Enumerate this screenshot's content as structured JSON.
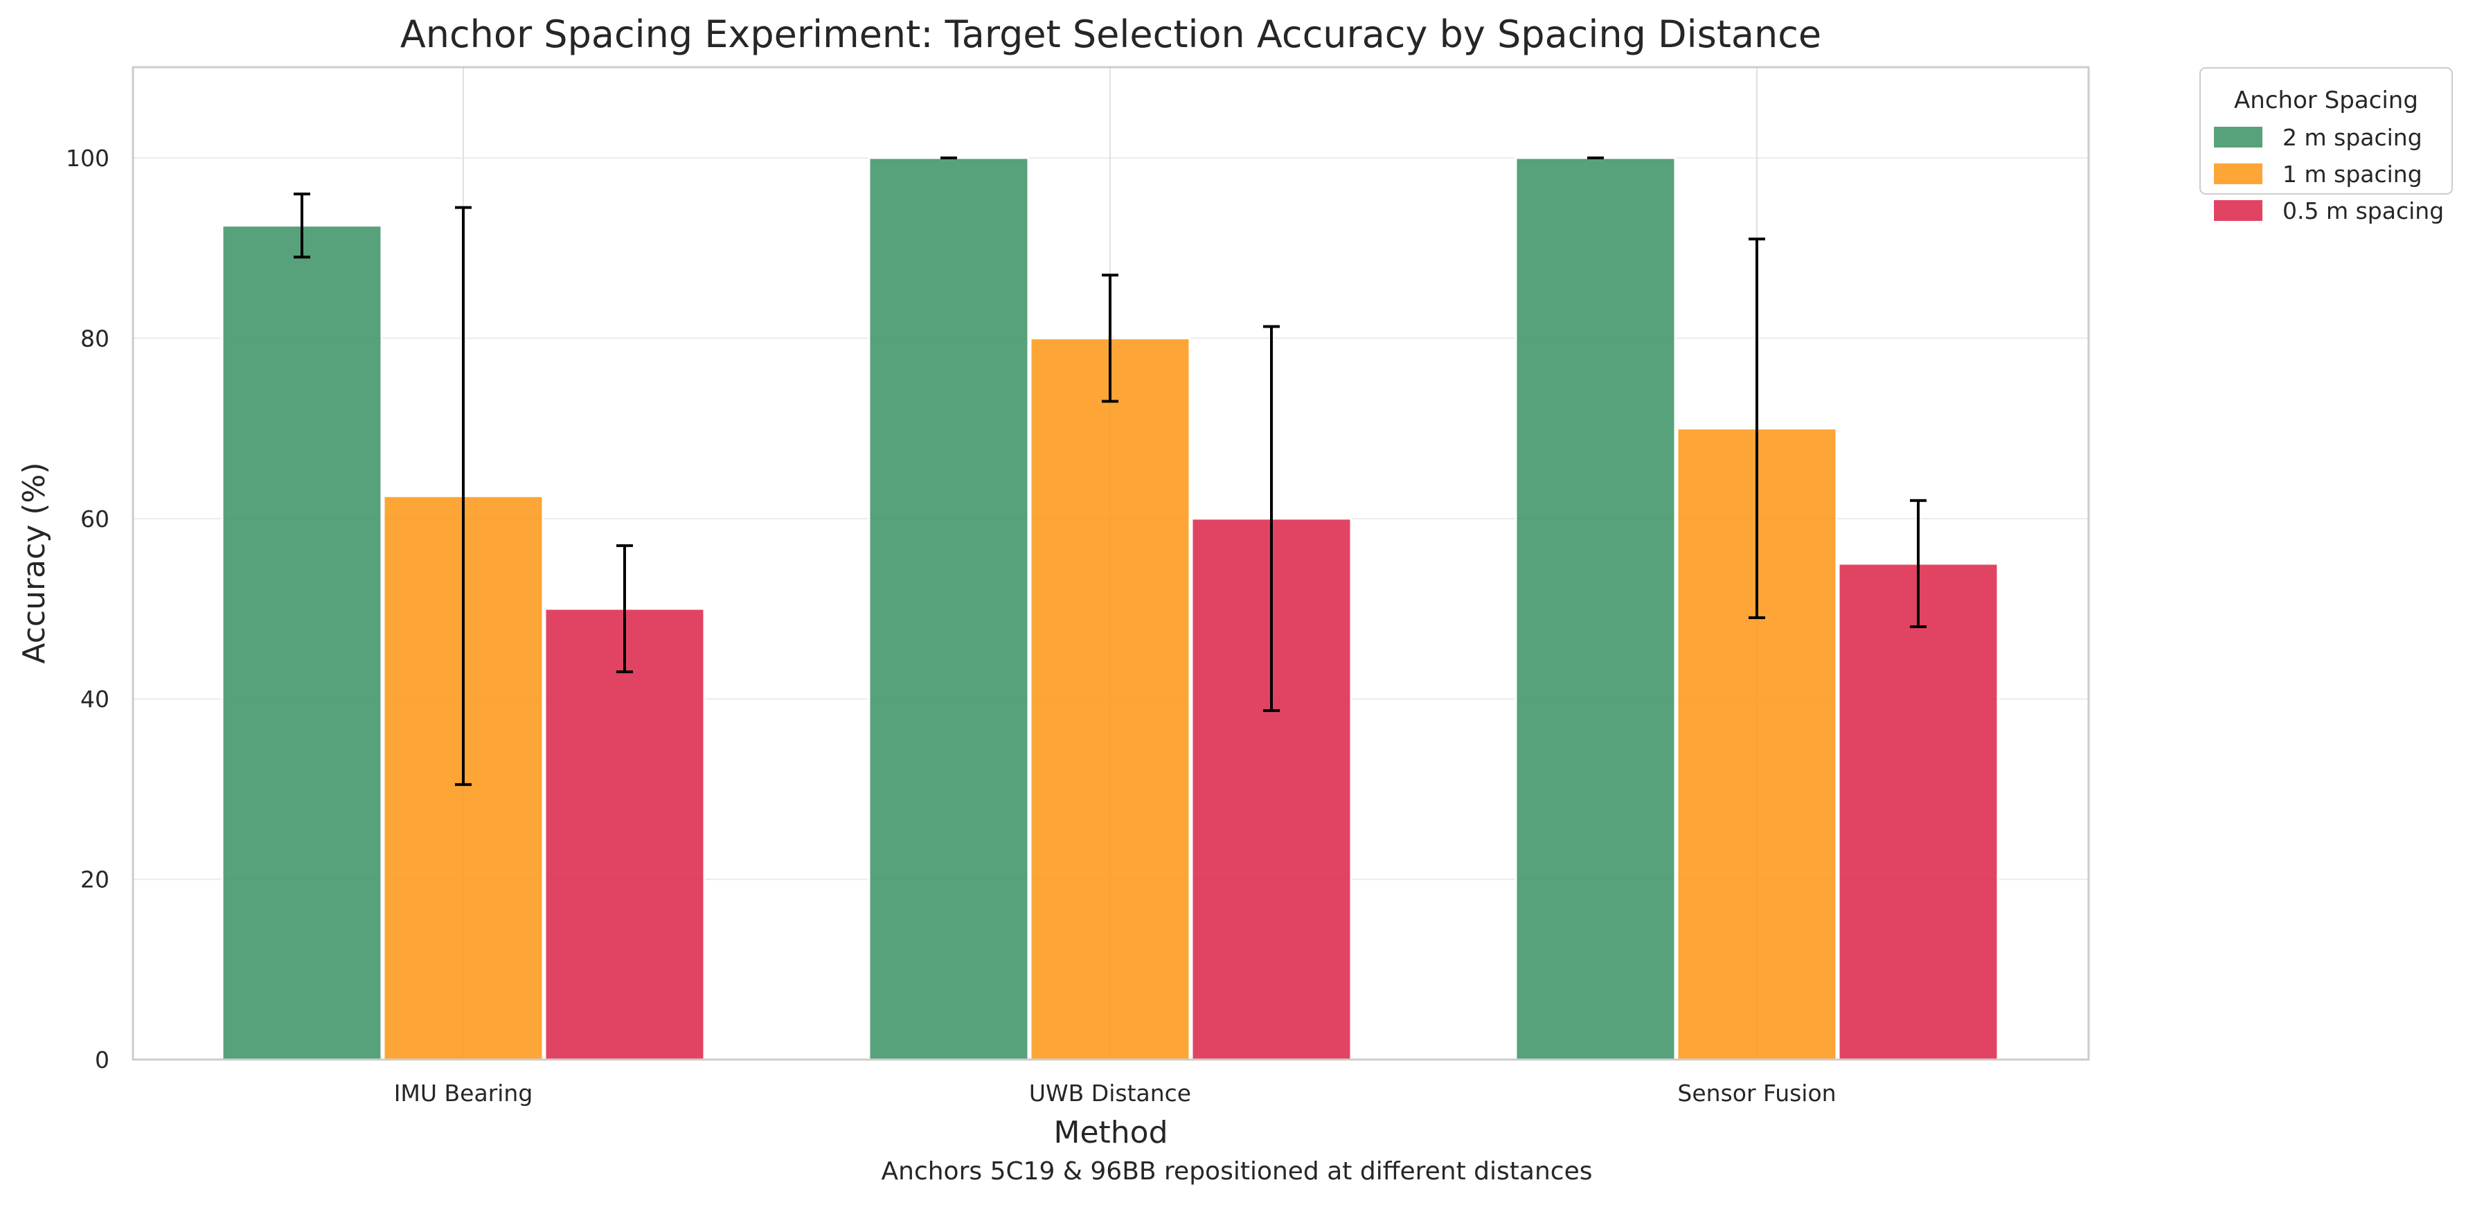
{
  "chart_data": {
    "type": "bar",
    "title": "Anchor Spacing Experiment: Target Selection Accuracy by Spacing Distance",
    "xlabel": "Method",
    "ylabel": "Accuracy (%)",
    "caption": "Anchors 5C19 & 96BB repositioned at different distances",
    "categories": [
      "IMU Bearing",
      "UWB Distance",
      "Sensor Fusion"
    ],
    "ylim": [
      0,
      110
    ],
    "yticks": [
      0,
      20,
      40,
      60,
      80,
      100
    ],
    "grid": true,
    "legend": {
      "title": "Anchor Spacing",
      "placement": "outside-top-right"
    },
    "series": [
      {
        "name": "2 m spacing",
        "color": "#3a9164",
        "values": [
          92.5,
          100,
          100
        ],
        "errors": [
          3.5,
          0,
          0
        ]
      },
      {
        "name": "1 m spacing",
        "color": "#fd9514",
        "values": [
          62.5,
          80,
          70
        ],
        "errors": [
          32,
          7,
          21
        ]
      },
      {
        "name": "0.5 m spacing",
        "color": "#dc2346",
        "values": [
          50,
          60,
          55
        ],
        "errors": [
          7,
          21.3,
          7
        ]
      }
    ]
  }
}
